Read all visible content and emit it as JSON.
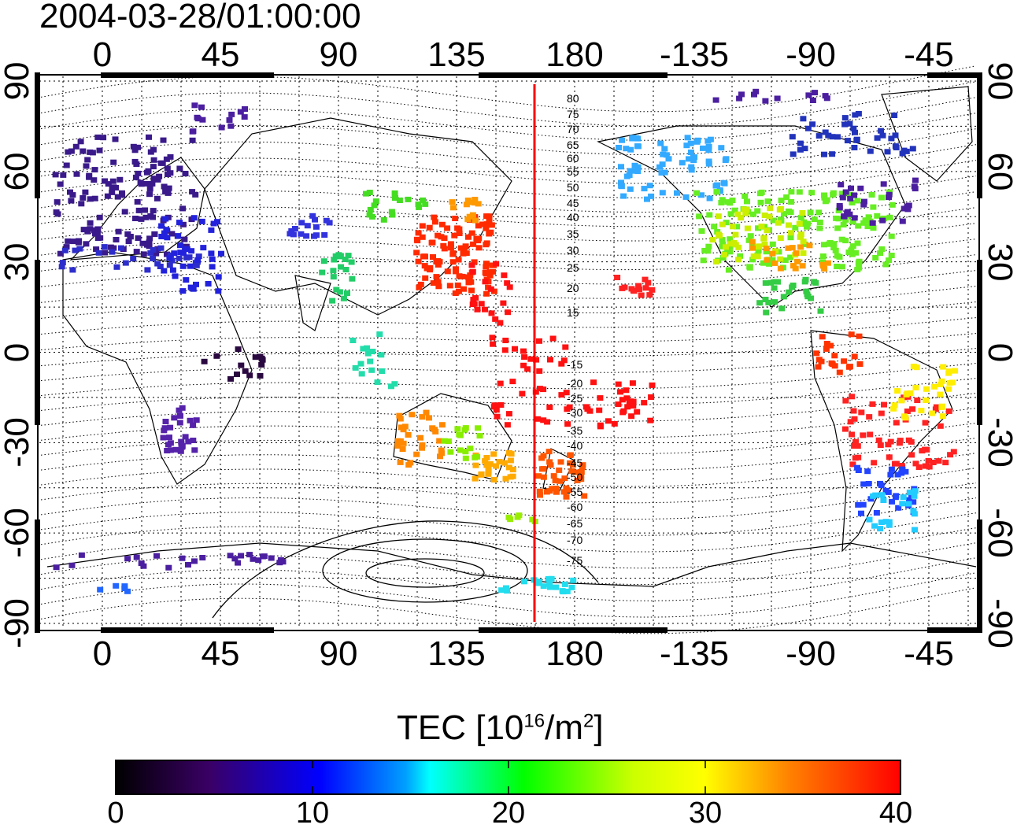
{
  "map": {
    "timestamp": "2004-03-28/01:00:00",
    "top_axis_labels": [
      "0",
      "45",
      "90",
      "135",
      "180",
      "-135",
      "-90",
      "-45"
    ],
    "bottom_axis_labels": [
      "0",
      "45",
      "90",
      "135",
      "180",
      "-135",
      "-90",
      "-45"
    ],
    "left_axis_labels": [
      "90",
      "60",
      "30",
      "0",
      "-30",
      "-60",
      "-90"
    ],
    "right_axis_labels": [
      "90",
      "60",
      "30",
      "0",
      "-30",
      "-60",
      "-90"
    ],
    "contour_labels": [
      "80",
      "75",
      "70",
      "65",
      "60",
      "55",
      "50",
      "45",
      "40",
      "35",
      "30",
      "25",
      "20",
      "15",
      "-15",
      "-20",
      "-25",
      "-30",
      "-35",
      "-40",
      "-45",
      "-50",
      "-55",
      "-60",
      "-65",
      "-70",
      "-75"
    ],
    "grid": true,
    "contour_color": "#000000",
    "line_color": "#ff0000"
  },
  "colorbar": {
    "title_main": "TEC  [10",
    "title_exp1": "16",
    "title_mid": "/m",
    "title_exp2": "2",
    "title_end": "]",
    "ticks": [
      "0",
      "10",
      "20",
      "30",
      "40"
    ],
    "min": 0,
    "max": 40,
    "colors": [
      "#000000",
      "#3a0066",
      "#0000ff",
      "#00ffff",
      "#00ff00",
      "#ffff00",
      "#ff8000",
      "#ff0000"
    ]
  }
}
